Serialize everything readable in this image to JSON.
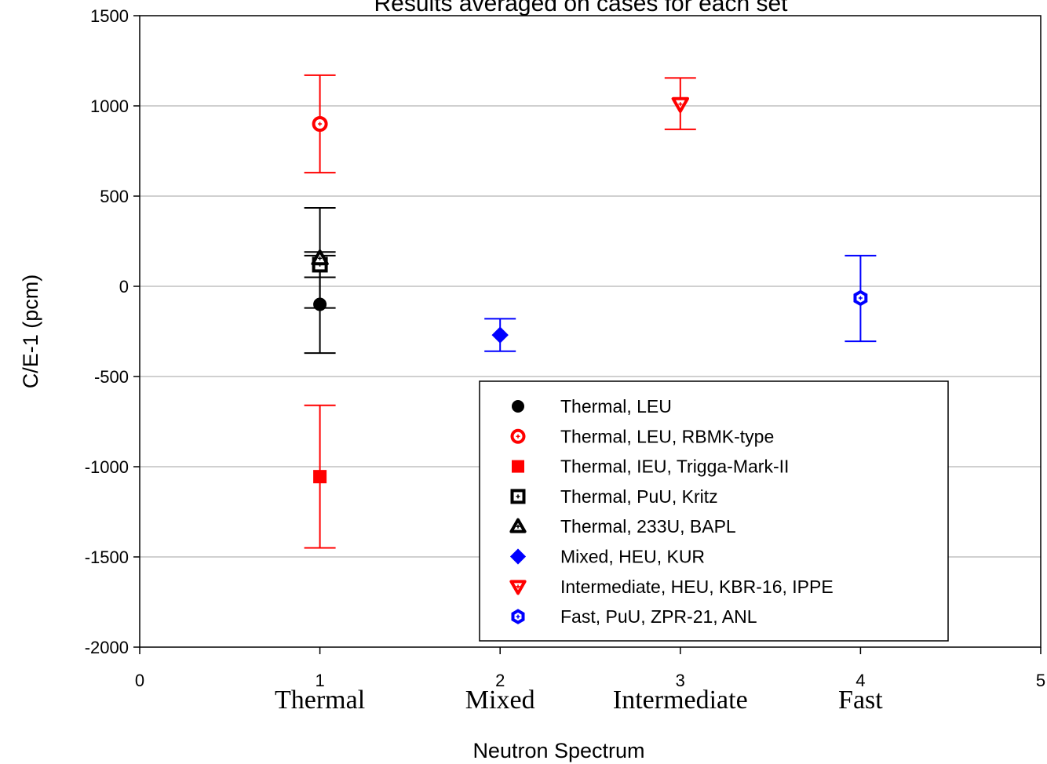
{
  "chart_data": {
    "type": "scatter",
    "title": "Results averaged on cases for each set",
    "xlabel": "Neutron Spectrum",
    "ylabel": "C/E-1 (pcm)",
    "xlim": [
      0,
      5
    ],
    "ylim": [
      -2000,
      1500
    ],
    "x_ticks": [
      0,
      1,
      2,
      3,
      4,
      5
    ],
    "y_ticks": [
      -2000,
      -1500,
      -1000,
      -500,
      0,
      500,
      1000,
      1500
    ],
    "grid_y": true,
    "category_labels": [
      {
        "x": 1,
        "label": "Thermal"
      },
      {
        "x": 2,
        "label": "Mixed"
      },
      {
        "x": 3,
        "label": "Intermediate"
      },
      {
        "x": 4,
        "label": "Fast"
      }
    ],
    "legend_position": "bottom-right",
    "series": [
      {
        "name": "Thermal, LEU",
        "x": 1,
        "y": -100,
        "err_low": -370,
        "err_high": 170,
        "color": "#000000",
        "marker": "circle-filled"
      },
      {
        "name": "Thermal, LEU, RBMK-type",
        "x": 1,
        "y": 900,
        "err_low": 630,
        "err_high": 1170,
        "color": "#ff0000",
        "marker": "circle-open"
      },
      {
        "name": "Thermal, IEU, Trigga-Mark-II",
        "x": 1,
        "y": -1055,
        "err_low": -1450,
        "err_high": -660,
        "color": "#ff0000",
        "marker": "square-filled"
      },
      {
        "name": "Thermal, PuU, Kritz",
        "x": 1,
        "y": 120,
        "err_low": 50,
        "err_high": 190,
        "color": "#000000",
        "marker": "square-open"
      },
      {
        "name": "Thermal, 233U, BAPL",
        "x": 1,
        "y": 155,
        "err_low": -120,
        "err_high": 435,
        "color": "#000000",
        "marker": "triangle-open"
      },
      {
        "name": "Mixed, HEU, KUR",
        "x": 2,
        "y": -270,
        "err_low": -360,
        "err_high": -180,
        "color": "#0000ff",
        "marker": "diamond-filled"
      },
      {
        "name": "Intermediate, HEU, KBR-16, IPPE",
        "x": 3,
        "y": 1010,
        "err_low": 870,
        "err_high": 1155,
        "color": "#ff0000",
        "marker": "triangle-down-open"
      },
      {
        "name": "Fast, PuU, ZPR-21, ANL",
        "x": 4,
        "y": -65,
        "err_low": -305,
        "err_high": 170,
        "color": "#0000ff",
        "marker": "hexagon-open"
      }
    ]
  }
}
